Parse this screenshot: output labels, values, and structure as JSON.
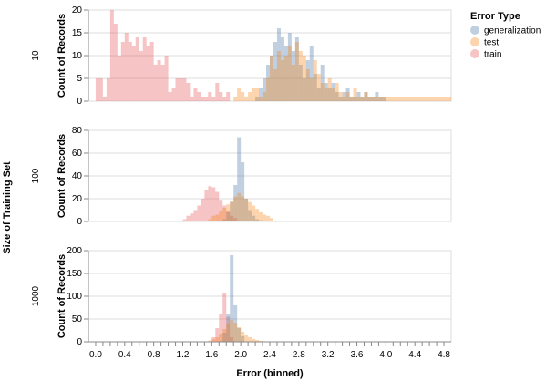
{
  "chart_data": {
    "type": "histogram",
    "facet": {
      "title": "Size of Training Set",
      "rows": [
        {
          "label": "10",
          "ylim": [
            0,
            20
          ],
          "yticks": [
            0,
            5,
            10,
            15,
            20
          ]
        },
        {
          "label": "100",
          "ylim": [
            0,
            80
          ],
          "yticks": [
            0,
            20,
            40,
            60,
            80
          ]
        },
        {
          "label": "1000",
          "ylim": [
            0,
            200
          ],
          "yticks": [
            0,
            50,
            100,
            150,
            200
          ]
        }
      ]
    },
    "ylabel": "Count of Records",
    "xlabel": "Error (binned)",
    "xlim": [
      -0.1,
      4.9
    ],
    "xticks": [
      0.0,
      0.4,
      0.8,
      1.2,
      1.6,
      2.0,
      2.4,
      2.8,
      3.2,
      3.6,
      4.0,
      4.4,
      4.8
    ],
    "xtick_labels": [
      "0.0",
      "0.4",
      "0.8",
      "1.2",
      "1.6",
      "2.0",
      "2.4",
      "2.8",
      "3.2",
      "3.6",
      "4.0",
      "4.4",
      "4.8"
    ],
    "bin_width": 0.05,
    "grid": true,
    "legend": {
      "title": "Error Type",
      "position": "top-right",
      "entries": [
        {
          "name": "generalization",
          "color": "#4c78a8"
        },
        {
          "name": "test",
          "color": "#f58518"
        },
        {
          "name": "train",
          "color": "#e45756"
        }
      ]
    },
    "bar_opacity": 0.35,
    "panels": [
      {
        "row": "10",
        "series": [
          {
            "name": "train",
            "bins": [
              [
                0.0,
                5
              ],
              [
                0.05,
                5
              ],
              [
                0.1,
                1
              ],
              [
                0.15,
                5
              ],
              [
                0.2,
                20
              ],
              [
                0.25,
                17
              ],
              [
                0.3,
                10
              ],
              [
                0.35,
                13
              ],
              [
                0.4,
                15
              ],
              [
                0.45,
                13
              ],
              [
                0.5,
                12
              ],
              [
                0.55,
                14
              ],
              [
                0.6,
                11
              ],
              [
                0.65,
                14
              ],
              [
                0.7,
                12
              ],
              [
                0.75,
                13
              ],
              [
                0.8,
                8
              ],
              [
                0.85,
                9
              ],
              [
                0.9,
                8
              ],
              [
                0.95,
                10
              ],
              [
                1.0,
                2
              ],
              [
                1.05,
                3
              ],
              [
                1.1,
                5
              ],
              [
                1.15,
                5
              ],
              [
                1.2,
                5
              ],
              [
                1.25,
                4
              ],
              [
                1.3,
                1
              ],
              [
                1.35,
                3
              ],
              [
                1.4,
                2
              ],
              [
                1.45,
                1
              ],
              [
                1.5,
                1
              ],
              [
                1.55,
                2
              ],
              [
                1.6,
                1
              ],
              [
                1.65,
                4
              ],
              [
                1.7,
                2
              ],
              [
                1.75,
                1
              ],
              [
                1.8,
                2
              ]
            ]
          },
          {
            "name": "generalization",
            "bins": [
              [
                2.2,
                1
              ],
              [
                2.25,
                3
              ],
              [
                2.3,
                5
              ],
              [
                2.35,
                8
              ],
              [
                2.4,
                10
              ],
              [
                2.45,
                13
              ],
              [
                2.5,
                16
              ],
              [
                2.55,
                14
              ],
              [
                2.6,
                12
              ],
              [
                2.65,
                15
              ],
              [
                2.7,
                11
              ],
              [
                2.75,
                14
              ],
              [
                2.8,
                8
              ],
              [
                2.85,
                5
              ],
              [
                2.9,
                9
              ],
              [
                2.95,
                12
              ],
              [
                3.0,
                6
              ],
              [
                3.05,
                3
              ],
              [
                3.1,
                8
              ],
              [
                3.15,
                4
              ],
              [
                3.2,
                3
              ],
              [
                3.25,
                4
              ],
              [
                3.3,
                2
              ],
              [
                3.35,
                1
              ],
              [
                3.4,
                2
              ],
              [
                3.45,
                3
              ],
              [
                3.5,
                1
              ],
              [
                3.55,
                1
              ],
              [
                3.6,
                2
              ],
              [
                3.65,
                1
              ],
              [
                3.7,
                2
              ],
              [
                3.75,
                1
              ],
              [
                3.8,
                1
              ],
              [
                3.85,
                2
              ],
              [
                3.9,
                1
              ],
              [
                3.95,
                1
              ]
            ]
          },
          {
            "name": "test",
            "bins": [
              [
                1.9,
                1
              ],
              [
                1.95,
                3
              ],
              [
                2.0,
                2
              ],
              [
                2.05,
                1
              ],
              [
                2.1,
                2
              ],
              [
                2.15,
                3
              ],
              [
                2.2,
                3
              ],
              [
                2.25,
                1
              ],
              [
                2.3,
                2
              ],
              [
                2.35,
                5
              ],
              [
                2.4,
                10
              ],
              [
                2.45,
                7
              ],
              [
                2.5,
                11
              ],
              [
                2.55,
                9
              ],
              [
                2.6,
                10
              ],
              [
                2.65,
                12
              ],
              [
                2.7,
                8
              ],
              [
                2.75,
                13
              ],
              [
                2.8,
                11
              ],
              [
                2.85,
                10
              ],
              [
                2.9,
                7
              ],
              [
                2.95,
                5
              ],
              [
                3.0,
                9
              ],
              [
                3.05,
                6
              ],
              [
                3.1,
                4
              ],
              [
                3.15,
                3
              ],
              [
                3.2,
                5
              ],
              [
                3.25,
                3
              ],
              [
                3.3,
                4
              ],
              [
                3.35,
                2
              ],
              [
                3.4,
                1
              ],
              [
                3.45,
                2
              ],
              [
                3.5,
                1
              ],
              [
                3.55,
                3
              ],
              [
                3.6,
                1
              ],
              [
                3.65,
                1
              ],
              [
                3.7,
                2
              ],
              [
                3.75,
                1
              ],
              [
                3.8,
                1
              ],
              [
                3.85,
                1
              ],
              [
                3.9,
                1
              ],
              [
                3.95,
                1
              ],
              [
                4.0,
                1
              ],
              [
                4.05,
                1
              ],
              [
                4.1,
                1
              ],
              [
                4.15,
                1
              ],
              [
                4.2,
                1
              ],
              [
                4.25,
                1
              ],
              [
                4.3,
                1
              ],
              [
                4.35,
                1
              ],
              [
                4.4,
                1
              ],
              [
                4.45,
                1
              ],
              [
                4.5,
                1
              ],
              [
                4.55,
                1
              ],
              [
                4.6,
                1
              ],
              [
                4.65,
                1
              ],
              [
                4.7,
                1
              ],
              [
                4.75,
                1
              ],
              [
                4.8,
                1
              ],
              [
                4.85,
                1
              ]
            ]
          }
        ]
      },
      {
        "row": "100",
        "series": [
          {
            "name": "train",
            "bins": [
              [
                1.2,
                2
              ],
              [
                1.25,
                5
              ],
              [
                1.3,
                7
              ],
              [
                1.35,
                10
              ],
              [
                1.4,
                14
              ],
              [
                1.45,
                20
              ],
              [
                1.5,
                28
              ],
              [
                1.55,
                31
              ],
              [
                1.6,
                30
              ],
              [
                1.65,
                26
              ],
              [
                1.7,
                19
              ],
              [
                1.75,
                14
              ],
              [
                1.8,
                9
              ],
              [
                1.85,
                5
              ],
              [
                1.9,
                3
              ],
              [
                1.95,
                1
              ]
            ]
          },
          {
            "name": "generalization",
            "bins": [
              [
                1.75,
                2
              ],
              [
                1.8,
                8
              ],
              [
                1.85,
                17
              ],
              [
                1.9,
                32
              ],
              [
                1.95,
                74
              ],
              [
                2.0,
                52
              ],
              [
                2.05,
                20
              ],
              [
                2.1,
                10
              ],
              [
                2.15,
                5
              ],
              [
                2.2,
                2
              ],
              [
                2.25,
                1
              ]
            ]
          },
          {
            "name": "test",
            "bins": [
              [
                1.55,
                2
              ],
              [
                1.6,
                5
              ],
              [
                1.65,
                6
              ],
              [
                1.7,
                9
              ],
              [
                1.75,
                12
              ],
              [
                1.8,
                15
              ],
              [
                1.85,
                18
              ],
              [
                1.9,
                22
              ],
              [
                1.95,
                25
              ],
              [
                2.0,
                22
              ],
              [
                2.05,
                20
              ],
              [
                2.1,
                17
              ],
              [
                2.15,
                14
              ],
              [
                2.2,
                11
              ],
              [
                2.25,
                8
              ],
              [
                2.3,
                6
              ],
              [
                2.35,
                5
              ],
              [
                2.4,
                3
              ]
            ]
          }
        ]
      },
      {
        "row": "1000",
        "series": [
          {
            "name": "train",
            "bins": [
              [
                1.6,
                10
              ],
              [
                1.65,
                30
              ],
              [
                1.7,
                60
              ],
              [
                1.75,
                108
              ],
              [
                1.8,
                55
              ],
              [
                1.85,
                10
              ]
            ]
          },
          {
            "name": "generalization",
            "bins": [
              [
                1.75,
                20
              ],
              [
                1.8,
                60
              ],
              [
                1.85,
                190
              ],
              [
                1.9,
                80
              ],
              [
                1.95,
                30
              ],
              [
                2.0,
                12
              ]
            ]
          },
          {
            "name": "test",
            "bins": [
              [
                1.55,
                3
              ],
              [
                1.6,
                6
              ],
              [
                1.65,
                10
              ],
              [
                1.7,
                18
              ],
              [
                1.75,
                28
              ],
              [
                1.8,
                40
              ],
              [
                1.85,
                48
              ],
              [
                1.9,
                42
              ],
              [
                1.95,
                32
              ],
              [
                2.0,
                22
              ],
              [
                2.05,
                15
              ],
              [
                2.1,
                10
              ],
              [
                2.15,
                6
              ],
              [
                2.2,
                4
              ],
              [
                2.25,
                2
              ],
              [
                2.3,
                1
              ]
            ]
          }
        ]
      }
    ]
  }
}
